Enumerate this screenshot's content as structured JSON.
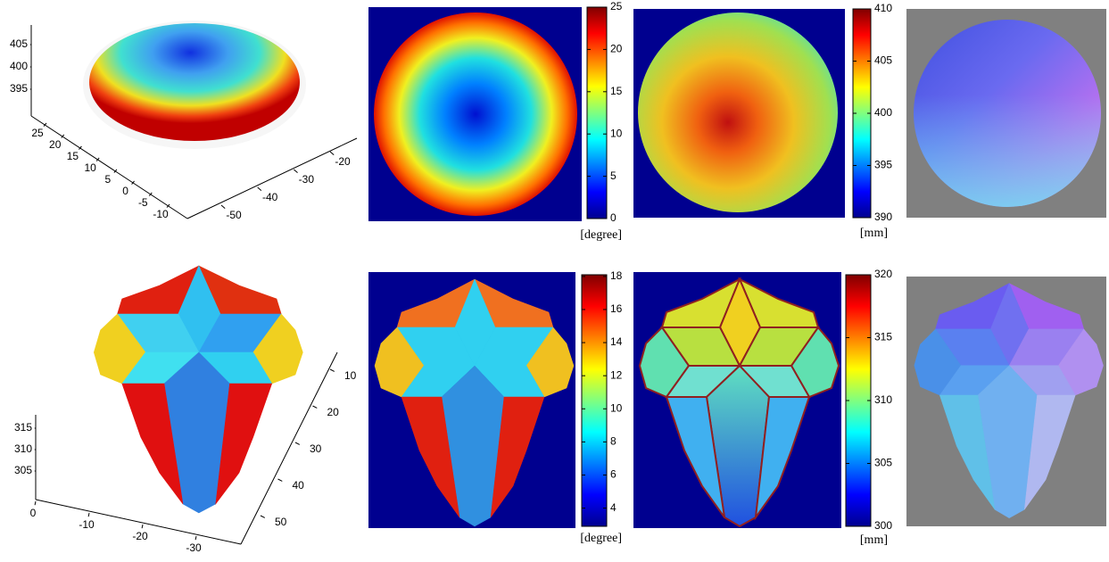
{
  "rows": [
    {
      "scatter_axes": {
        "z_ticks": [
          395,
          400,
          405
        ],
        "y_ticks": [
          25,
          20,
          15,
          10,
          5,
          0,
          -5,
          -10
        ],
        "x_ticks": [
          -20,
          -30,
          -40,
          -50
        ]
      },
      "angle_map": {
        "clim": [
          0,
          25
        ],
        "ticks": [
          0,
          5,
          10,
          15,
          20,
          25
        ],
        "unit": "[degree]"
      },
      "depth_map": {
        "clim": [
          390,
          410
        ],
        "ticks": [
          390,
          395,
          400,
          405,
          410
        ],
        "unit": "[mm]"
      }
    },
    {
      "scatter_axes": {
        "z_ticks": [
          305,
          310,
          315
        ],
        "y_ticks": [
          0,
          -10,
          -20,
          -30
        ],
        "x_ticks": [
          10,
          20,
          30,
          40,
          50
        ]
      },
      "angle_map": {
        "clim": [
          2.9,
          18.1
        ],
        "ticks": [
          4,
          6,
          8,
          10,
          12,
          14,
          16,
          18
        ],
        "unit": "[degree]"
      },
      "depth_map": {
        "clim": [
          300,
          320
        ],
        "ticks": [
          300,
          305,
          310,
          315,
          320
        ],
        "unit": "[mm]"
      }
    }
  ]
}
